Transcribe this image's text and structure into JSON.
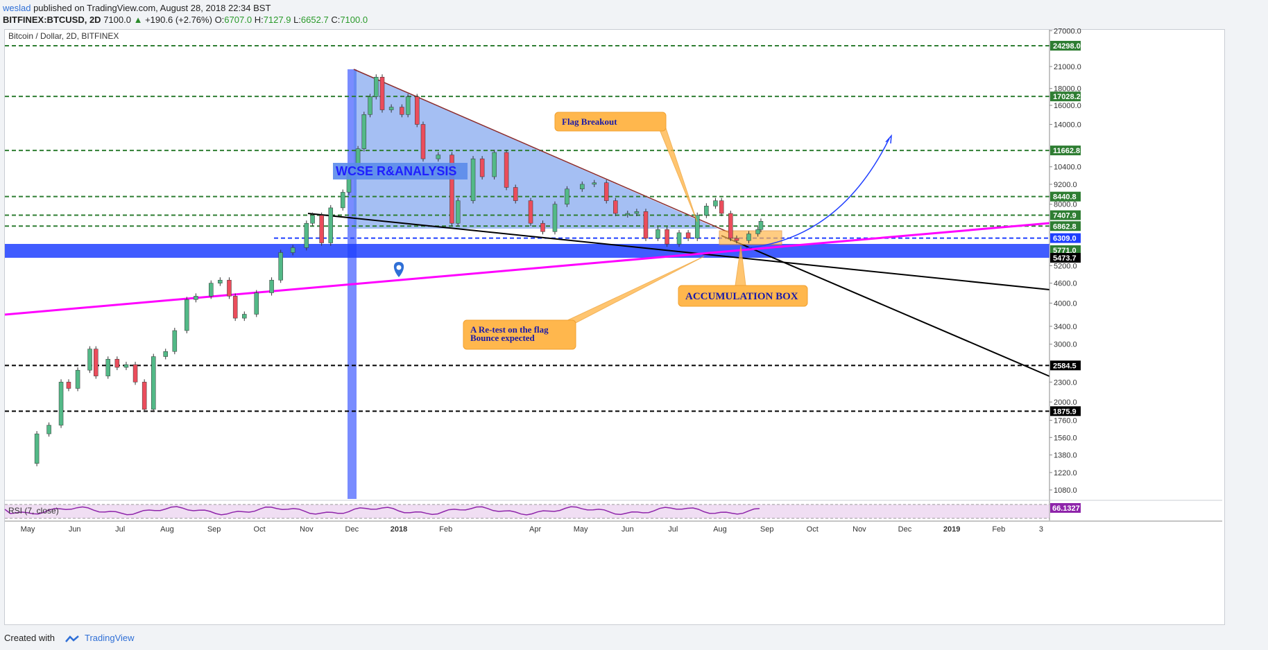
{
  "header": {
    "author": "weslad",
    "published_text": " published on TradingView.com, August 28, 2018 22:34 BST",
    "symbol": "BITFINEX:BTCUSD, 2D",
    "last": "7100.0",
    "change": "+190.6 (+2.76%)",
    "o_label": "O:",
    "o_value": "6707.0",
    "h_label": "H:",
    "h_value": "7127.9",
    "l_label": "L:",
    "l_value": "6652.7",
    "c_label": "C:",
    "c_value": "7100.0"
  },
  "footer": {
    "created_with": "Created with",
    "brand": "TradingView"
  },
  "chart_data": {
    "type": "candlestick",
    "title": "Bitcoin / Dollar, 2D, BITFINEX",
    "y_scale": "log",
    "ylim": [
      1000,
      28500
    ],
    "y_ticks": [
      27000,
      21000,
      18000,
      16000,
      14000,
      12000,
      10400,
      9200,
      8000,
      7000,
      6000,
      5200,
      4600,
      4000,
      3400,
      3000,
      2600,
      2300,
      2000,
      1760,
      1560,
      1380,
      1220,
      1080
    ],
    "y_tick_labels": [
      "27000.0",
      "21000.0",
      "18000.0",
      "16000.0",
      "14000.0",
      "",
      "10400.0",
      "9200.0",
      "8000.0",
      "",
      "",
      "5200.0",
      "4600.0",
      "4000.0",
      "3400.0",
      "3000.0",
      "",
      "2300.0",
      "2000.0",
      "1760.0",
      "1560.0",
      "1380.0",
      "1220.0",
      "1080.0"
    ],
    "x_labels": [
      "May",
      "Jun",
      "Jul",
      "Aug",
      "Sep",
      "Oct",
      "Nov",
      "Dec",
      "2018",
      "Feb",
      "Apr",
      "May",
      "Jun",
      "Jul",
      "Aug",
      "Sep",
      "Oct",
      "Nov",
      "Dec",
      "2019",
      "Feb",
      "3"
    ],
    "x_label_dates": [
      "2017-05-01",
      "2017-06-01",
      "2017-07-01",
      "2017-08-01",
      "2017-09-01",
      "2017-10-01",
      "2017-11-01",
      "2017-12-01",
      "2018-01-01",
      "2018-02-01",
      "2018-04-01",
      "2018-05-01",
      "2018-06-01",
      "2018-07-01",
      "2018-08-01",
      "2018-09-01",
      "2018-10-01",
      "2018-11-01",
      "2018-12-01",
      "2019-01-01",
      "2019-02-01",
      "2019-03-01"
    ],
    "closes": [
      [
        "2017-04-29",
        1300
      ],
      [
        "2017-05-07",
        1600
      ],
      [
        "2017-05-15",
        1700
      ],
      [
        "2017-05-23",
        2300
      ],
      [
        "2017-05-28",
        2200
      ],
      [
        "2017-06-03",
        2500
      ],
      [
        "2017-06-11",
        2900
      ],
      [
        "2017-06-15",
        2400
      ],
      [
        "2017-06-23",
        2700
      ],
      [
        "2017-06-29",
        2550
      ],
      [
        "2017-07-05",
        2600
      ],
      [
        "2017-07-11",
        2300
      ],
      [
        "2017-07-17",
        1900
      ],
      [
        "2017-07-23",
        2750
      ],
      [
        "2017-07-31",
        2850
      ],
      [
        "2017-08-06",
        3300
      ],
      [
        "2017-08-14",
        4100
      ],
      [
        "2017-08-20",
        4200
      ],
      [
        "2017-08-30",
        4600
      ],
      [
        "2017-09-05",
        4700
      ],
      [
        "2017-09-11",
        4200
      ],
      [
        "2017-09-15",
        3600
      ],
      [
        "2017-09-21",
        3700
      ],
      [
        "2017-09-29",
        4300
      ],
      [
        "2017-10-09",
        4700
      ],
      [
        "2017-10-15",
        5700
      ],
      [
        "2017-10-23",
        5900
      ],
      [
        "2017-11-01",
        7000
      ],
      [
        "2017-11-05",
        7400
      ],
      [
        "2017-11-11",
        6100
      ],
      [
        "2017-11-17",
        7800
      ],
      [
        "2017-11-25",
        8700
      ],
      [
        "2017-11-29",
        10000
      ],
      [
        "2017-12-05",
        11800
      ],
      [
        "2017-12-09",
        15000
      ],
      [
        "2017-12-13",
        17000
      ],
      [
        "2017-12-17",
        19500
      ],
      [
        "2017-12-21",
        15500
      ],
      [
        "2017-12-27",
        15800
      ],
      [
        "2018-01-03",
        15000
      ],
      [
        "2018-01-07",
        17000
      ],
      [
        "2018-01-13",
        14000
      ],
      [
        "2018-01-17",
        11000
      ],
      [
        "2018-01-27",
        11300
      ],
      [
        "2018-02-05",
        7000
      ],
      [
        "2018-02-09",
        8200
      ],
      [
        "2018-02-19",
        11000
      ],
      [
        "2018-02-25",
        9700
      ],
      [
        "2018-03-05",
        11500
      ],
      [
        "2018-03-13",
        9000
      ],
      [
        "2018-03-19",
        8200
      ],
      [
        "2018-03-29",
        7000
      ],
      [
        "2018-04-06",
        6600
      ],
      [
        "2018-04-14",
        8000
      ],
      [
        "2018-04-22",
        8900
      ],
      [
        "2018-05-02",
        9200
      ],
      [
        "2018-05-10",
        9300
      ],
      [
        "2018-05-18",
        8200
      ],
      [
        "2018-05-24",
        7500
      ],
      [
        "2018-06-01",
        7500
      ],
      [
        "2018-06-07",
        7600
      ],
      [
        "2018-06-13",
        6300
      ],
      [
        "2018-06-21",
        6700
      ],
      [
        "2018-06-27",
        6050
      ],
      [
        "2018-07-05",
        6550
      ],
      [
        "2018-07-11",
        6300
      ],
      [
        "2018-07-17",
        7400
      ],
      [
        "2018-07-23",
        7900
      ],
      [
        "2018-07-29",
        8200
      ],
      [
        "2018-08-02",
        7500
      ],
      [
        "2018-08-08",
        6300
      ],
      [
        "2018-08-12",
        6200
      ],
      [
        "2018-08-20",
        6500
      ],
      [
        "2018-08-26",
        6700
      ],
      [
        "2018-08-28",
        7100
      ]
    ],
    "price_labels": [
      {
        "value": 24298.0,
        "text": "24298.0",
        "color": "#2e7d32"
      },
      {
        "value": 17028.2,
        "text": "17028.2",
        "color": "#2e7d32"
      },
      {
        "value": 11662.8,
        "text": "11662.8",
        "color": "#2e7d32"
      },
      {
        "value": 8440.8,
        "text": "8440.8",
        "color": "#2e7d32"
      },
      {
        "value": 7407.9,
        "text": "7407.9",
        "color": "#2e7d32"
      },
      {
        "value": 6862.8,
        "text": "6862.8",
        "color": "#2e7d32"
      },
      {
        "value": 6309.0,
        "text": "6309.0",
        "color": "#1f3fff"
      },
      {
        "value": 5771.0,
        "text": "5771.0",
        "color": "#2e7d32"
      },
      {
        "value": 5473.7,
        "text": "5473.7",
        "color": "#000000"
      },
      {
        "value": 2584.5,
        "text": "2584.5",
        "color": "#000000"
      },
      {
        "value": 1875.9,
        "text": "1875.9",
        "color": "#000000"
      }
    ],
    "annotations": {
      "watermark": "WCSE R&ANALYSIS",
      "flag_breakout": "Flag Breakout",
      "accumulation_box": "ACCUMULATION BOX",
      "retest_line1": "A Re-test on the flag",
      "retest_line2": "Bounce expected"
    },
    "rsi": {
      "label": "RSI (7, close)",
      "value": "66.1327",
      "value_color": "#8e24aa"
    },
    "colors": {
      "up": "#53b987",
      "down": "#eb4d5c",
      "support_band": "#1f3fff",
      "trendline": "#ff00ff",
      "callout": "#ffb74d",
      "triangle_fill": "#5b8bea"
    }
  }
}
